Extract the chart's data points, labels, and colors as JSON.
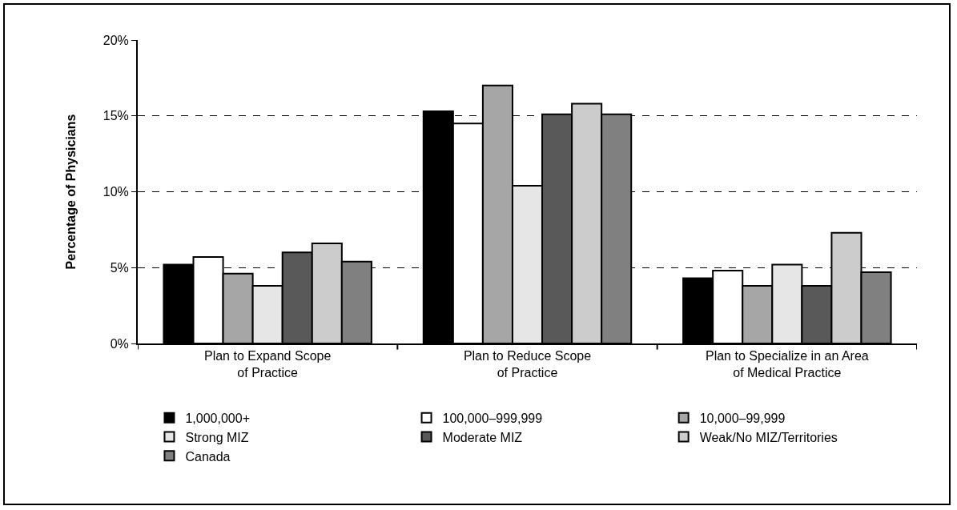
{
  "chart_data": {
    "type": "bar",
    "ylabel": "Percentage of Physicians",
    "categories": [
      "Plan to Expand Scope\nof Practice",
      "Plan to Reduce Scope\nof Practice",
      "Plan to Specialize in an Area\nof Medical Practice"
    ],
    "series": [
      {
        "name": "1,000,000+",
        "color": "#000000",
        "values": [
          5.2,
          15.3,
          4.3
        ]
      },
      {
        "name": "100,000–999,999",
        "color": "#ffffff",
        "values": [
          5.7,
          14.5,
          4.8
        ]
      },
      {
        "name": "10,000–99,999",
        "color": "#a6a6a6",
        "values": [
          4.6,
          17.0,
          3.8
        ]
      },
      {
        "name": "Strong MIZ",
        "color": "#e6e6e6",
        "values": [
          3.8,
          10.4,
          5.2
        ]
      },
      {
        "name": "Moderate MIZ",
        "color": "#595959",
        "values": [
          6.0,
          15.1,
          3.8
        ]
      },
      {
        "name": "Weak/No MIZ/Territories",
        "color": "#cccccc",
        "values": [
          6.6,
          15.8,
          7.3
        ]
      },
      {
        "name": "Canada",
        "color": "#808080",
        "values": [
          5.4,
          15.1,
          4.7
        ]
      }
    ],
    "ylim": [
      0,
      20
    ],
    "yticks": [
      {
        "value": 0,
        "label": "0%"
      },
      {
        "value": 5,
        "label": "5%"
      },
      {
        "value": 10,
        "label": "10%"
      },
      {
        "value": 15,
        "label": "15%"
      },
      {
        "value": 20,
        "label": "20%"
      }
    ],
    "grid": "y",
    "line_style": "dashed",
    "legend": "bottom"
  }
}
